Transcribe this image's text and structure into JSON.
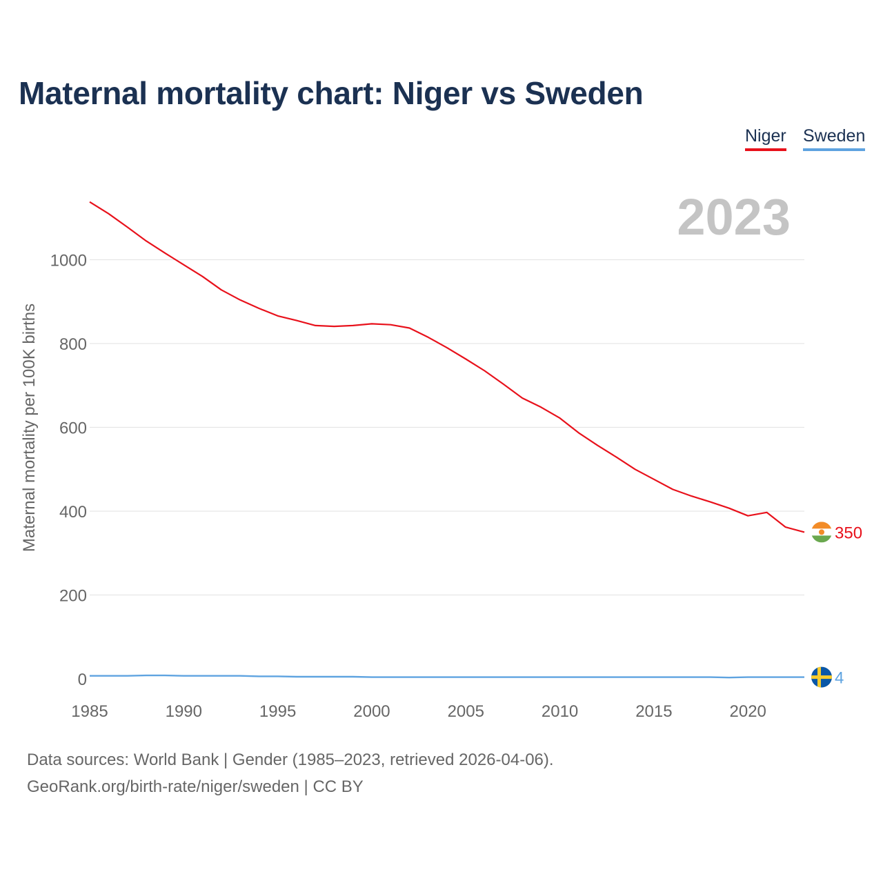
{
  "title": "Maternal mortality chart: Niger vs Sweden",
  "colors": {
    "niger": "#e8111b",
    "sweden": "#5ea3e0",
    "grid": "#e6e6e6",
    "year_label": "#c4c4c4"
  },
  "legend": [
    {
      "label": "Niger",
      "color": "#e8111b"
    },
    {
      "label": "Sweden",
      "color": "#5ea3e0"
    }
  ],
  "current_year": "2023",
  "chart_data": {
    "type": "line",
    "title": "Maternal mortality chart: Niger vs Sweden",
    "xlabel": "",
    "ylabel": "Maternal mortality per 100K births",
    "x": [
      1985,
      1986,
      1987,
      1988,
      1989,
      1990,
      1991,
      1992,
      1993,
      1994,
      1995,
      1996,
      1997,
      1998,
      1999,
      2000,
      2001,
      2002,
      2003,
      2004,
      2005,
      2006,
      2007,
      2008,
      2009,
      2010,
      2011,
      2012,
      2013,
      2014,
      2015,
      2016,
      2017,
      2018,
      2019,
      2020,
      2021,
      2022,
      2023
    ],
    "xlim": [
      1985,
      2023
    ],
    "ylim": [
      0,
      1150
    ],
    "xticks": [
      1985,
      1990,
      1995,
      2000,
      2005,
      2010,
      2015,
      2020
    ],
    "yticks": [
      0,
      200,
      400,
      600,
      800,
      1000
    ],
    "grid": true,
    "legend_position": "top-right",
    "series": [
      {
        "name": "Niger",
        "values": [
          1138,
          1110,
          1078,
          1045,
          1016,
          988,
          960,
          928,
          904,
          884,
          866,
          855,
          843,
          841,
          843,
          847,
          845,
          837,
          815,
          790,
          763,
          735,
          703,
          670,
          648,
          622,
          587,
          557,
          529,
          500,
          476,
          452,
          436,
          422,
          407,
          389,
          397,
          362,
          350
        ],
        "end_label": "350"
      },
      {
        "name": "Sweden",
        "values": [
          7,
          7,
          7,
          8,
          8,
          7,
          7,
          7,
          7,
          6,
          6,
          5,
          5,
          5,
          5,
          4,
          4,
          4,
          4,
          4,
          4,
          4,
          4,
          4,
          4,
          4,
          4,
          4,
          4,
          4,
          4,
          4,
          4,
          4,
          3,
          4,
          4,
          4,
          4
        ],
        "end_label": "4"
      }
    ]
  },
  "footer": {
    "source": "Data sources: World Bank | Gender (1985–2023, retrieved 2026-04-06).",
    "attribution": "GeoRank.org/birth-rate/niger/sweden | CC BY"
  }
}
